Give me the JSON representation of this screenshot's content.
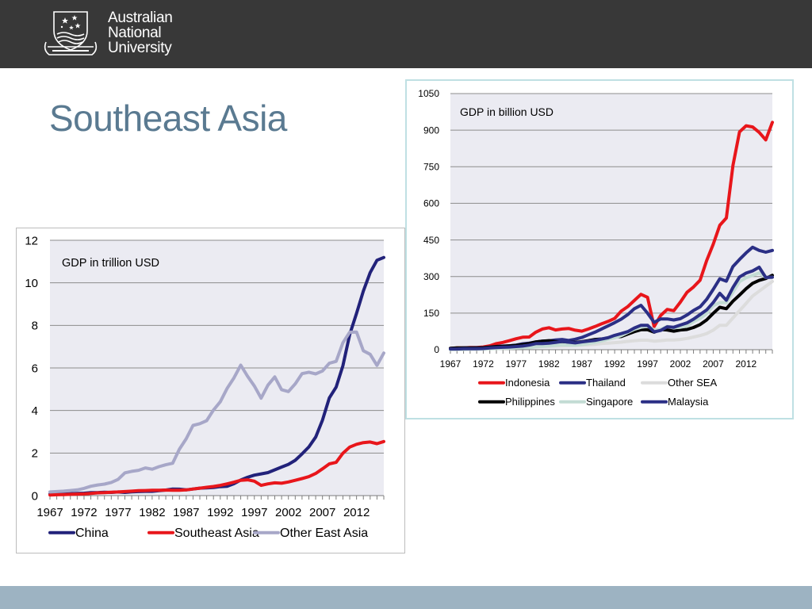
{
  "header": {
    "org_name_lines": [
      "Australian",
      "National",
      "University"
    ],
    "title": "Southeast Asia",
    "bar_color": "#383838",
    "footer_color": "#9db3c2",
    "title_color": "#5a7a91"
  },
  "chart_data": [
    {
      "type": "line",
      "title": "GDP in trillion USD",
      "xlabel": "",
      "ylabel": "",
      "x": [
        1967,
        1968,
        1969,
        1970,
        1971,
        1972,
        1973,
        1974,
        1975,
        1976,
        1977,
        1978,
        1979,
        1980,
        1981,
        1982,
        1983,
        1984,
        1985,
        1986,
        1987,
        1988,
        1989,
        1990,
        1991,
        1992,
        1993,
        1994,
        1995,
        1996,
        1997,
        1998,
        1999,
        2000,
        2001,
        2002,
        2003,
        2004,
        2005,
        2006,
        2007,
        2008,
        2009,
        2010,
        2011,
        2012,
        2013,
        2014,
        2015,
        2016
      ],
      "x_ticks": [
        1967,
        1972,
        1977,
        1982,
        1987,
        1992,
        1997,
        2002,
        2007,
        2012
      ],
      "ylim": [
        0,
        12
      ],
      "y_ticks": [
        0,
        2,
        4,
        6,
        8,
        10,
        12
      ],
      "grid": true,
      "legend_position": "bottom",
      "series": [
        {
          "name": "China",
          "color": "#22227a",
          "values": [
            0.07,
            0.07,
            0.08,
            0.09,
            0.1,
            0.11,
            0.14,
            0.14,
            0.16,
            0.15,
            0.17,
            0.15,
            0.18,
            0.19,
            0.2,
            0.2,
            0.23,
            0.26,
            0.31,
            0.3,
            0.27,
            0.31,
            0.35,
            0.36,
            0.38,
            0.42,
            0.44,
            0.56,
            0.73,
            0.86,
            0.96,
            1.02,
            1.08,
            1.21,
            1.34,
            1.47,
            1.66,
            1.96,
            2.29,
            2.75,
            3.55,
            4.59,
            5.1,
            6.1,
            7.57,
            8.56,
            9.61,
            10.48,
            11.06,
            11.19
          ]
        },
        {
          "name": "Southeast Asia",
          "color": "#e8161b",
          "values": [
            0.03,
            0.04,
            0.05,
            0.06,
            0.07,
            0.08,
            0.1,
            0.13,
            0.14,
            0.16,
            0.17,
            0.19,
            0.21,
            0.23,
            0.24,
            0.25,
            0.25,
            0.26,
            0.25,
            0.25,
            0.27,
            0.31,
            0.35,
            0.39,
            0.43,
            0.48,
            0.55,
            0.63,
            0.72,
            0.74,
            0.68,
            0.48,
            0.55,
            0.6,
            0.58,
            0.64,
            0.72,
            0.8,
            0.89,
            1.04,
            1.26,
            1.49,
            1.56,
            1.99,
            2.28,
            2.41,
            2.49,
            2.52,
            2.44,
            2.54
          ]
        },
        {
          "name": "Other East Asia",
          "color": "#a7a7c8",
          "values": [
            0.17,
            0.19,
            0.21,
            0.24,
            0.27,
            0.34,
            0.44,
            0.5,
            0.54,
            0.62,
            0.76,
            1.07,
            1.14,
            1.19,
            1.3,
            1.24,
            1.36,
            1.45,
            1.52,
            2.18,
            2.67,
            3.3,
            3.38,
            3.52,
            4.02,
            4.41,
            5.04,
            5.53,
            6.13,
            5.61,
            5.15,
            4.58,
            5.19,
            5.58,
            4.98,
            4.89,
            5.25,
            5.73,
            5.8,
            5.72,
            5.86,
            6.22,
            6.31,
            7.18,
            7.68,
            7.69,
            6.81,
            6.64,
            6.12,
            6.7
          ]
        }
      ]
    },
    {
      "type": "line",
      "title": "GDP in billion USD",
      "xlabel": "",
      "ylabel": "",
      "x": [
        1967,
        1968,
        1969,
        1970,
        1971,
        1972,
        1973,
        1974,
        1975,
        1976,
        1977,
        1978,
        1979,
        1980,
        1981,
        1982,
        1983,
        1984,
        1985,
        1986,
        1987,
        1988,
        1989,
        1990,
        1991,
        1992,
        1993,
        1994,
        1995,
        1996,
        1997,
        1998,
        1999,
        2000,
        2001,
        2002,
        2003,
        2004,
        2005,
        2006,
        2007,
        2008,
        2009,
        2010,
        2011,
        2012,
        2013,
        2014,
        2015,
        2016
      ],
      "x_ticks": [
        1967,
        1972,
        1977,
        1982,
        1987,
        1992,
        1997,
        2002,
        2007,
        2012
      ],
      "ylim": [
        0,
        1050
      ],
      "y_ticks": [
        0,
        150,
        300,
        450,
        600,
        750,
        900,
        1050
      ],
      "grid": true,
      "legend_position": "bottom",
      "series": [
        {
          "name": "Indonesia",
          "color": "#e8161b",
          "values": [
            5,
            7,
            7,
            9,
            9,
            11,
            16,
            25,
            30,
            37,
            45,
            51,
            52,
            72,
            85,
            90,
            81,
            85,
            87,
            80,
            76,
            85,
            95,
            106,
            116,
            128,
            158,
            177,
            202,
            227,
            215,
            95,
            140,
            165,
            160,
            195,
            235,
            257,
            285,
            365,
            432,
            510,
            540,
            755,
            893,
            918,
            913,
            891,
            860,
            932
          ]
        },
        {
          "name": "Thailand",
          "color": "#2b2f85",
          "values": [
            5,
            6,
            7,
            7,
            8,
            8,
            11,
            13,
            15,
            16,
            19,
            24,
            27,
            32,
            35,
            36,
            40,
            42,
            38,
            43,
            50,
            61,
            72,
            85,
            98,
            111,
            125,
            144,
            168,
            182,
            150,
            112,
            126,
            126,
            122,
            127,
            142,
            161,
            176,
            206,
            247,
            291,
            281,
            341,
            370,
            397,
            420,
            407,
            400,
            407
          ]
        },
        {
          "name": "Other SEA",
          "color": "#dcdcdc",
          "values": [
            3,
            3,
            3,
            3,
            4,
            4,
            5,
            6,
            6,
            7,
            8,
            9,
            10,
            12,
            13,
            14,
            15,
            16,
            17,
            18,
            19,
            20,
            22,
            25,
            27,
            29,
            31,
            34,
            37,
            39,
            39,
            35,
            37,
            40,
            40,
            42,
            46,
            52,
            58,
            66,
            80,
            100,
            100,
            130,
            160,
            190,
            220,
            240,
            260,
            280
          ]
        },
        {
          "name": "Philippines",
          "color": "#000000",
          "values": [
            6,
            7,
            7,
            7,
            7,
            8,
            10,
            13,
            14,
            16,
            18,
            21,
            25,
            32,
            35,
            37,
            33,
            31,
            31,
            30,
            33,
            37,
            42,
            44,
            45,
            53,
            54,
            64,
            74,
            82,
            82,
            72,
            83,
            81,
            76,
            81,
            83,
            91,
            103,
            122,
            149,
            174,
            168,
            199,
            224,
            250,
            272,
            284,
            292,
            305
          ]
        },
        {
          "name": "Singapore",
          "color": "#c3dcd4",
          "values": [
            1,
            1,
            1,
            2,
            2,
            3,
            4,
            5,
            6,
            6,
            7,
            8,
            9,
            12,
            14,
            16,
            18,
            20,
            19,
            18,
            21,
            25,
            30,
            36,
            43,
            49,
            58,
            71,
            84,
            92,
            96,
            82,
            83,
            96,
            90,
            92,
            97,
            115,
            128,
            148,
            180,
            193,
            193,
            236,
            279,
            295,
            305,
            315,
            296,
            297
          ]
        },
        {
          "name": "Malaysia",
          "color": "#2b2f85",
          "values": [
            3,
            3,
            4,
            4,
            4,
            5,
            7,
            9,
            10,
            11,
            13,
            15,
            19,
            25,
            25,
            27,
            30,
            34,
            31,
            28,
            32,
            35,
            38,
            44,
            49,
            59,
            66,
            74,
            89,
            100,
            100,
            73,
            79,
            94,
            92,
            101,
            110,
            125,
            144,
            163,
            193,
            231,
            203,
            255,
            298,
            314,
            323,
            338,
            296,
            297
          ]
        }
      ]
    }
  ]
}
